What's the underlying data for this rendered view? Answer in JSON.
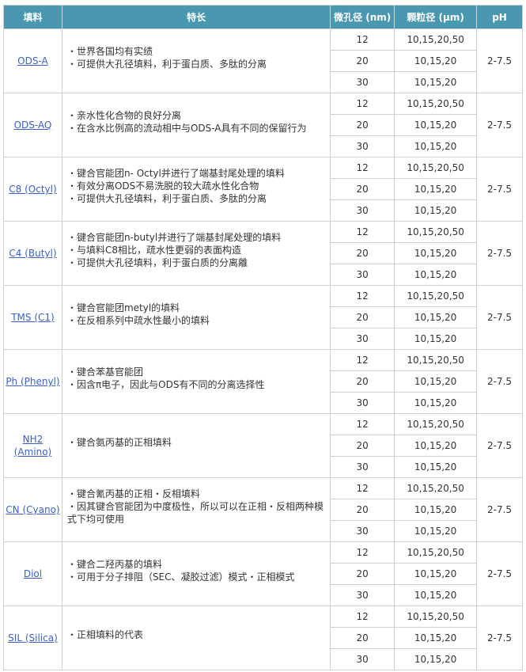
{
  "header": {
    "packing": "填料",
    "features": "特长",
    "pore": "微孔径 (nm)",
    "particle": "颗粒径 (μm)",
    "ph": "pH"
  },
  "rows": [
    {
      "name": "ODS-A",
      "features": [
        "・世界各国均有实绩",
        "・可提供大孔径填料，利于蛋白质、多肽的分离"
      ],
      "pores": [
        "12",
        "20",
        "30"
      ],
      "particles": [
        "10,15,20,50",
        "10,15,20",
        "10,15,20"
      ],
      "ph": "2-7.5"
    },
    {
      "name": "ODS-AQ",
      "features": [
        "・亲水性化合物的良好分离",
        "・在含水比例高的流动相中与ODS-A具有不同的保留行为"
      ],
      "pores": [
        "12",
        "20",
        "30"
      ],
      "particles": [
        "10,15,20,50",
        "10,15,20",
        "10,15,20"
      ],
      "ph": "2-7.5"
    },
    {
      "name": "C8 (Octyl)",
      "features": [
        "・键合官能团n- Octyl并进行了端基封尾处理的填料",
        "・有效分离ODS不易洗脱的较大疏水性化合物",
        "・可提供大孔径填料，利于蛋白质、多肽的分离"
      ],
      "pores": [
        "12",
        "20",
        "30"
      ],
      "particles": [
        "10,15,20,50",
        "10,15,20",
        "10,15,20"
      ],
      "ph": "2-7.5"
    },
    {
      "name": "C4 (Butyl)",
      "features": [
        "・键合官能团n-butyl并进行了端基封尾处理的填料",
        "・与填料C8相比，疏水性更弱的表面构造",
        "・可提供大孔径填料，利于蛋白质的分离離"
      ],
      "pores": [
        "12",
        "20",
        "30"
      ],
      "particles": [
        "10,15,20,50",
        "10,15,20",
        "10,15,20"
      ],
      "ph": "2-7.5"
    },
    {
      "name": "TMS (C1)",
      "features": [
        "・键合官能团metyl的填料",
        "・在反相系列中疏水性最小的填料"
      ],
      "pores": [
        "12",
        "20",
        "30"
      ],
      "particles": [
        "10,15,20,50",
        "10,15,20",
        "10,15,20"
      ],
      "ph": "2-7.5"
    },
    {
      "name": "Ph (Phenyl)",
      "features": [
        "・键合苯基官能团",
        "・因含π电子，因此与ODS有不同的分离选择性"
      ],
      "pores": [
        "12",
        "20",
        "30"
      ],
      "particles": [
        "10,15,20,50",
        "10,15,20",
        "10,15,20"
      ],
      "ph": "2-7.5"
    },
    {
      "name": "NH2 (Amino)",
      "features": [
        "・键合氨丙基的正相填料"
      ],
      "pores": [
        "12",
        "20",
        "30"
      ],
      "particles": [
        "10,15,20,50",
        "10,15,20",
        "10,15,20"
      ],
      "ph": "2-7.5"
    },
    {
      "name": "CN (Cyano)",
      "features": [
        "・键合氰丙基的正相・反相填料",
        "・因其键合官能团为中度极性，所以可以在正相・反相两种模式下均可使用"
      ],
      "pores": [
        "12",
        "20",
        "30"
      ],
      "particles": [
        "10,15,20,50",
        "10,15,20",
        "10,15,20"
      ],
      "ph": "2-7.5"
    },
    {
      "name": "Diol",
      "features": [
        "・键合二羟丙基的填料",
        "・可用于分子排阻（SEC、凝胶过滤）模式・正相模式"
      ],
      "pores": [
        "12",
        "20",
        "30"
      ],
      "particles": [
        "10,15,20,50",
        "10,15,20",
        "10,15,20"
      ],
      "ph": "2-7.5"
    },
    {
      "name": "SIL (Silica)",
      "features": [
        "・正相填料的代表"
      ],
      "pores": [
        "12",
        "20",
        "30"
      ],
      "particles": [
        "10,15,20,50",
        "10,15,20",
        "10,15,20"
      ],
      "ph": "2-7.5"
    }
  ]
}
